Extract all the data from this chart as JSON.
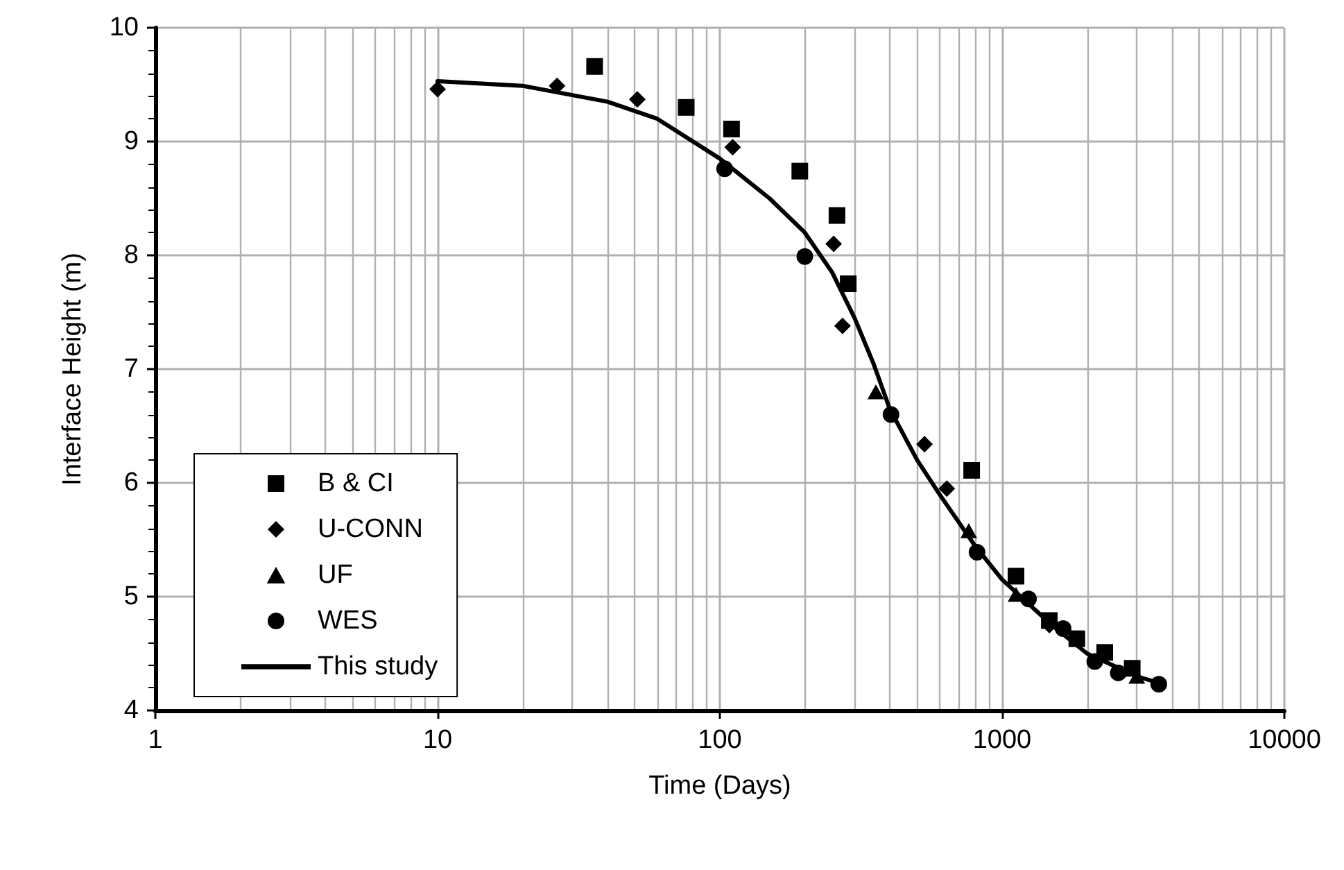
{
  "chart_data": {
    "type": "scatter",
    "xlabel": "Time (Days)",
    "ylabel": "Interface Height (m)",
    "log": "x",
    "xlim": [
      1,
      10000
    ],
    "xticks": [
      1,
      10,
      100,
      1000,
      10000
    ],
    "ylim": [
      4,
      10
    ],
    "yticks": [
      4,
      5,
      6,
      7,
      8,
      9,
      10
    ],
    "grid": true,
    "legend": "bottom left",
    "series": [
      {
        "name": "B & CI",
        "color": "#000000",
        "marker": "square",
        "x": [
          36,
          76,
          110,
          192,
          260,
          285,
          780,
          1120,
          1470,
          1840,
          2310,
          2890
        ],
        "values": [
          9.66,
          9.3,
          9.11,
          8.74,
          8.35,
          7.75,
          6.11,
          5.18,
          4.79,
          4.63,
          4.51,
          4.37
        ]
      },
      {
        "name": "U-CONN",
        "color": "#000000",
        "marker": "diamond",
        "x": [
          10,
          26.5,
          51,
          111,
          253,
          272,
          531,
          637,
          1470
        ],
        "values": [
          9.46,
          9.49,
          9.37,
          8.95,
          8.1,
          7.38,
          6.34,
          5.95,
          4.75
        ]
      },
      {
        "name": "UF",
        "color": "#000000",
        "marker": "triangle",
        "x": [
          357,
          762,
          1120,
          3000
        ],
        "values": [
          6.8,
          5.58,
          5.02,
          4.3
        ]
      },
      {
        "name": "WES",
        "color": "#000000",
        "marker": "circle",
        "x": [
          104,
          200,
          404,
          815,
          1240,
          1645,
          2130,
          2580,
          3590
        ],
        "values": [
          8.76,
          7.99,
          6.6,
          5.39,
          4.98,
          4.72,
          4.43,
          4.33,
          4.23
        ]
      },
      {
        "name": "This study",
        "type": "line",
        "color": "#000000",
        "marker": "none",
        "line_style": "solid",
        "x": [
          10,
          20,
          40,
          60,
          100,
          150,
          200,
          250,
          300,
          350,
          400,
          500,
          600,
          800,
          1000,
          1500,
          2000,
          3000,
          3500
        ],
        "values": [
          9.53,
          9.49,
          9.35,
          9.2,
          8.85,
          8.5,
          8.2,
          7.85,
          7.45,
          7.05,
          6.65,
          6.2,
          5.9,
          5.45,
          5.15,
          4.75,
          4.5,
          4.3,
          4.25
        ]
      }
    ]
  }
}
